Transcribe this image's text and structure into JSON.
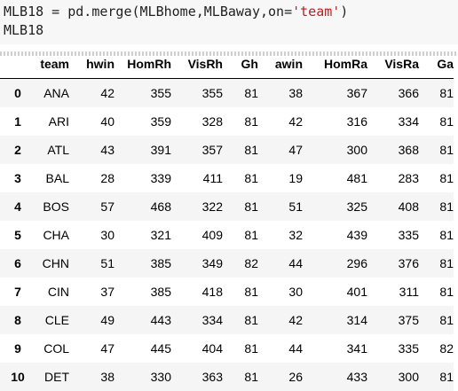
{
  "code": {
    "line1_prefix": "MLB18 = pd.merge(MLBhome,MLBaway,on=",
    "line1_string": "'team'",
    "line1_suffix": ")",
    "line2": "MLB18"
  },
  "table": {
    "columns": [
      "team",
      "hwin",
      "HomRh",
      "VisRh",
      "Gh",
      "awin",
      "HomRa",
      "VisRa",
      "Ga"
    ],
    "rows": [
      {
        "index": "0",
        "cells": [
          "ANA",
          "42",
          "355",
          "355",
          "81",
          "38",
          "367",
          "366",
          "81"
        ]
      },
      {
        "index": "1",
        "cells": [
          "ARI",
          "40",
          "359",
          "328",
          "81",
          "42",
          "316",
          "334",
          "81"
        ]
      },
      {
        "index": "2",
        "cells": [
          "ATL",
          "43",
          "391",
          "357",
          "81",
          "47",
          "300",
          "368",
          "81"
        ]
      },
      {
        "index": "3",
        "cells": [
          "BAL",
          "28",
          "339",
          "411",
          "81",
          "19",
          "481",
          "283",
          "81"
        ]
      },
      {
        "index": "4",
        "cells": [
          "BOS",
          "57",
          "468",
          "322",
          "81",
          "51",
          "325",
          "408",
          "81"
        ]
      },
      {
        "index": "5",
        "cells": [
          "CHA",
          "30",
          "321",
          "409",
          "81",
          "32",
          "439",
          "335",
          "81"
        ]
      },
      {
        "index": "6",
        "cells": [
          "CHN",
          "51",
          "385",
          "349",
          "82",
          "44",
          "296",
          "376",
          "81"
        ]
      },
      {
        "index": "7",
        "cells": [
          "CIN",
          "37",
          "385",
          "418",
          "81",
          "30",
          "401",
          "311",
          "81"
        ]
      },
      {
        "index": "8",
        "cells": [
          "CLE",
          "49",
          "443",
          "334",
          "81",
          "42",
          "314",
          "375",
          "81"
        ]
      },
      {
        "index": "9",
        "cells": [
          "COL",
          "47",
          "445",
          "404",
          "81",
          "44",
          "341",
          "335",
          "82"
        ]
      },
      {
        "index": "10",
        "cells": [
          "DET",
          "38",
          "330",
          "363",
          "81",
          "26",
          "433",
          "300",
          "81"
        ]
      }
    ]
  },
  "colors": {
    "code_background": "#f7f7f7",
    "string_color": "#ba2121",
    "row_stripe": "#f5f5f5"
  }
}
